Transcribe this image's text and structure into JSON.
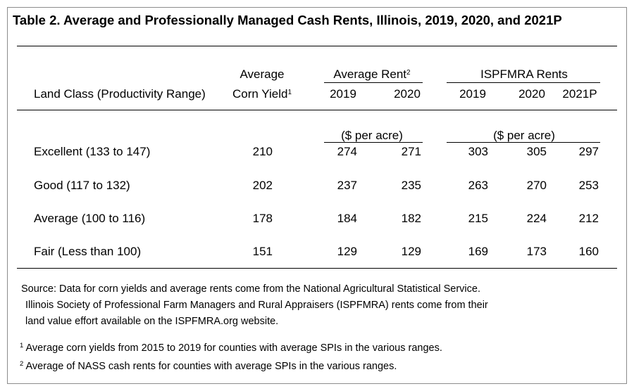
{
  "title": "Table 2. Average and Professionally Managed Cash Rents, Illinois, 2019, 2020, and 2021P",
  "headers": {
    "land_class": "Land Class (Productivity Range)",
    "yield_line1": "Average",
    "yield_line2": "Corn Yield",
    "yield_sup": "1",
    "avg_rent_group": "Average Rent",
    "avg_rent_sup": "2",
    "ispfmra_group": "ISPFMRA Rents",
    "years": [
      "2019",
      "2020",
      "2019",
      "2020",
      "2021P"
    ],
    "unit_avg": "($ per acre)",
    "unit_ispfmra": "($ per acre)"
  },
  "rows": [
    {
      "label": "Excellent (133 to 147)",
      "values": [
        "210",
        "274",
        "271",
        "303",
        "305",
        "297"
      ]
    },
    {
      "label": "Good (117 to 132)",
      "values": [
        "202",
        "237",
        "235",
        "263",
        "270",
        "253"
      ]
    },
    {
      "label": "Average (100 to 116)",
      "values": [
        "178",
        "184",
        "182",
        "215",
        "224",
        "212"
      ]
    },
    {
      "label": "Fair (Less than 100)",
      "values": [
        "151",
        "129",
        "129",
        "169",
        "173",
        "160"
      ]
    }
  ],
  "source": {
    "line1": "Source:  Data for corn yields and average rents come from the National Agricultural Statistical Service.",
    "line2": "Illinois Society of Professional Farm Managers and Rural Appraisers (ISPFMRA) rents come from their",
    "line3": "land value effort available on the ISPFMRA.org website."
  },
  "footnotes": [
    {
      "mark": "1",
      "text": " Average corn yields from 2015 to 2019 for counties with average SPIs in the various ranges."
    },
    {
      "mark": "2",
      "text": " Average of NASS cash rents for counties with average SPIs in the various ranges."
    }
  ]
}
